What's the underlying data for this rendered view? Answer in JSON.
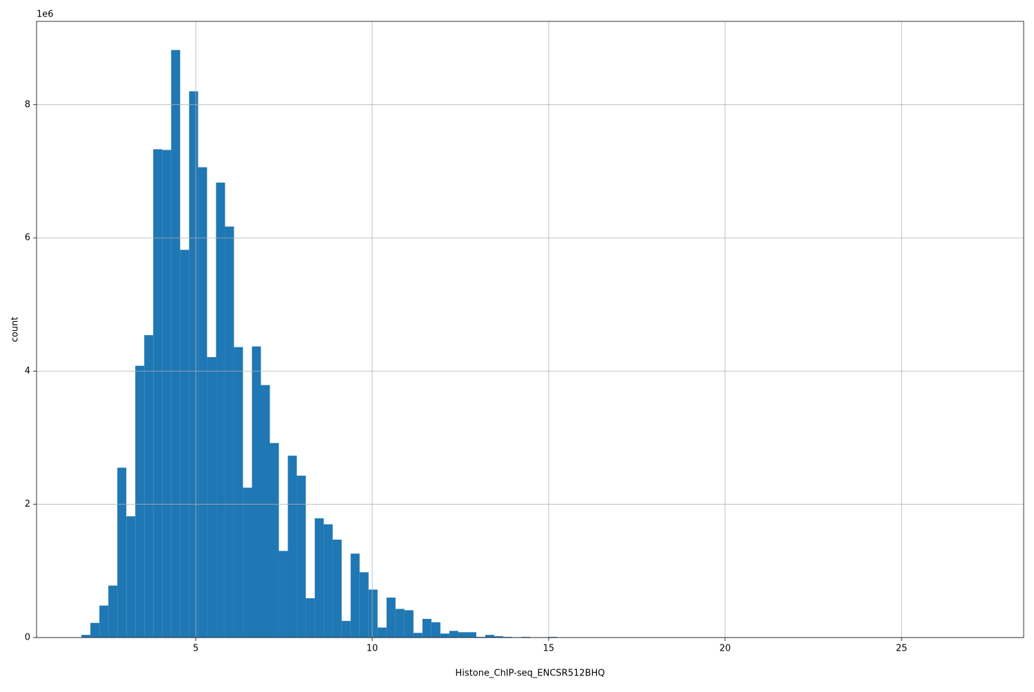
{
  "chart_data": {
    "type": "histogram",
    "xlabel": "Histone_ChIP-seq_ENCSR512BHQ",
    "ylabel": "count",
    "y_offset_label": "1e6",
    "color": "#1f77b4",
    "grid": true,
    "bins": [
      1.76,
      2.014,
      2.269,
      2.523,
      2.777,
      3.032,
      3.286,
      3.54,
      3.794,
      4.049,
      4.303,
      4.557,
      4.812,
      5.066,
      5.32,
      5.575,
      5.829,
      6.083,
      6.337,
      6.592,
      6.846,
      7.1,
      7.355,
      7.609,
      7.863,
      8.118,
      8.372,
      8.626,
      8.88,
      9.135,
      9.389,
      9.643,
      9.898,
      10.152,
      10.406,
      10.661,
      10.915,
      11.169,
      11.423,
      11.678,
      11.932,
      12.186,
      12.441,
      12.695,
      12.949,
      13.204,
      13.458,
      13.712,
      13.966,
      14.221,
      14.475,
      14.729,
      14.984,
      15.238,
      15.492,
      15.747,
      16.001,
      16.255,
      16.509,
      16.764,
      17.018,
      17.272,
      17.527,
      17.781,
      18.035,
      18.29,
      18.544,
      18.798,
      19.052,
      19.307,
      19.561,
      19.815,
      20.07,
      20.324,
      20.578,
      20.833,
      21.087,
      21.341,
      21.595,
      21.85,
      22.104,
      22.358,
      22.613,
      22.867,
      23.121,
      23.376,
      23.63,
      23.884,
      24.138,
      24.393,
      24.647,
      24.901,
      25.156,
      25.41,
      25.664,
      25.919,
      26.173,
      26.427,
      26.681,
      26.936,
      27.19
    ],
    "counts": [
      40000,
      220000,
      480000,
      780000,
      2550000,
      1820000,
      4080000,
      4540000,
      7330000,
      7320000,
      8820000,
      5820000,
      8200000,
      7060000,
      4210000,
      6830000,
      6170000,
      4360000,
      2250000,
      4370000,
      3790000,
      2920000,
      1300000,
      2730000,
      2430000,
      590000,
      1790000,
      1700000,
      1470000,
      250000,
      1260000,
      980000,
      720000,
      150000,
      600000,
      430000,
      410000,
      70000,
      280000,
      230000,
      60000,
      100000,
      80000,
      80000,
      10000,
      40000,
      20000,
      10000,
      5000,
      10000,
      0,
      5000,
      10000,
      0,
      0,
      0,
      0,
      0,
      0,
      0,
      0,
      0,
      0,
      0,
      0,
      0,
      0,
      0,
      0,
      0,
      0,
      0,
      0,
      0,
      0,
      0,
      0,
      0,
      0,
      0,
      0,
      0,
      0,
      0,
      0,
      0,
      0,
      0,
      0,
      0,
      0,
      0,
      0,
      0,
      0,
      0,
      0,
      0,
      0,
      0
    ],
    "xlim": [
      0.488,
      28.46
    ],
    "xticks": [
      5,
      10,
      15,
      20,
      25
    ],
    "ylim": [
      0,
      9250000
    ],
    "yticks": [
      0,
      {
        "value": 2000000,
        "label": "2"
      },
      {
        "value": 4000000,
        "label": "4"
      },
      {
        "value": 6000000,
        "label": "6"
      },
      {
        "value": 8000000,
        "label": "8"
      }
    ]
  }
}
